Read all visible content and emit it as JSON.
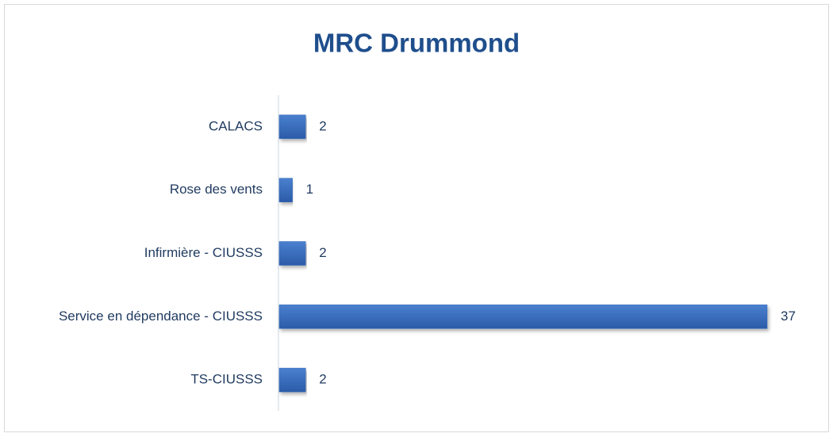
{
  "chart_data": {
    "type": "barh",
    "title": "MRC Drummond",
    "categories": [
      "CALACS",
      "Rose des vents",
      "Infirmière - CIUSSS",
      "Service en dépendance - CIUSSS",
      "TS-CIUSSS"
    ],
    "values": [
      2,
      1,
      2,
      37,
      2
    ],
    "color": "#3569b8"
  }
}
